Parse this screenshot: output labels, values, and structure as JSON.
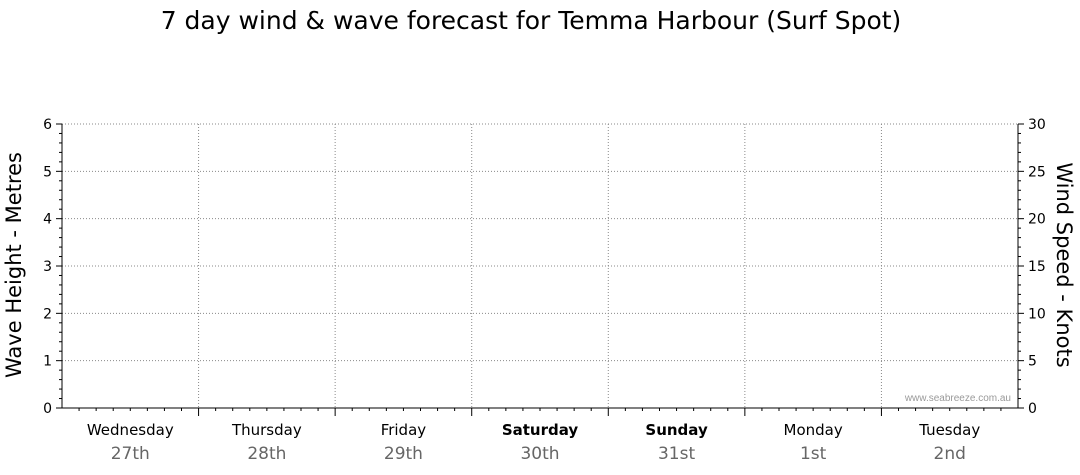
{
  "chart_data": {
    "type": "line",
    "title": "7 day wind & wave forecast for Temma Harbour (Surf Spot)",
    "ylabel": "Wave Height - Metres",
    "y2label": "Wind Speed - Knots",
    "ylim": [
      0,
      6
    ],
    "y2lim": [
      0,
      30
    ],
    "yticks": [
      "0",
      "1",
      "2",
      "3",
      "4",
      "5",
      "6"
    ],
    "y2ticks": [
      "0",
      "5",
      "10",
      "15",
      "20",
      "25",
      "30"
    ],
    "grid": true,
    "days": [
      {
        "day": "Wednesday",
        "date": "27th",
        "bold": false
      },
      {
        "day": "Thursday",
        "date": "28th",
        "bold": false
      },
      {
        "day": "Friday",
        "date": "29th",
        "bold": false
      },
      {
        "day": "Saturday",
        "date": "30th",
        "bold": true
      },
      {
        "day": "Sunday",
        "date": "31st",
        "bold": true
      },
      {
        "day": "Monday",
        "date": "1st",
        "bold": false
      },
      {
        "day": "Tuesday",
        "date": "2nd",
        "bold": false
      }
    ],
    "series": [],
    "watermark": "www.seabreeze.com.au"
  }
}
